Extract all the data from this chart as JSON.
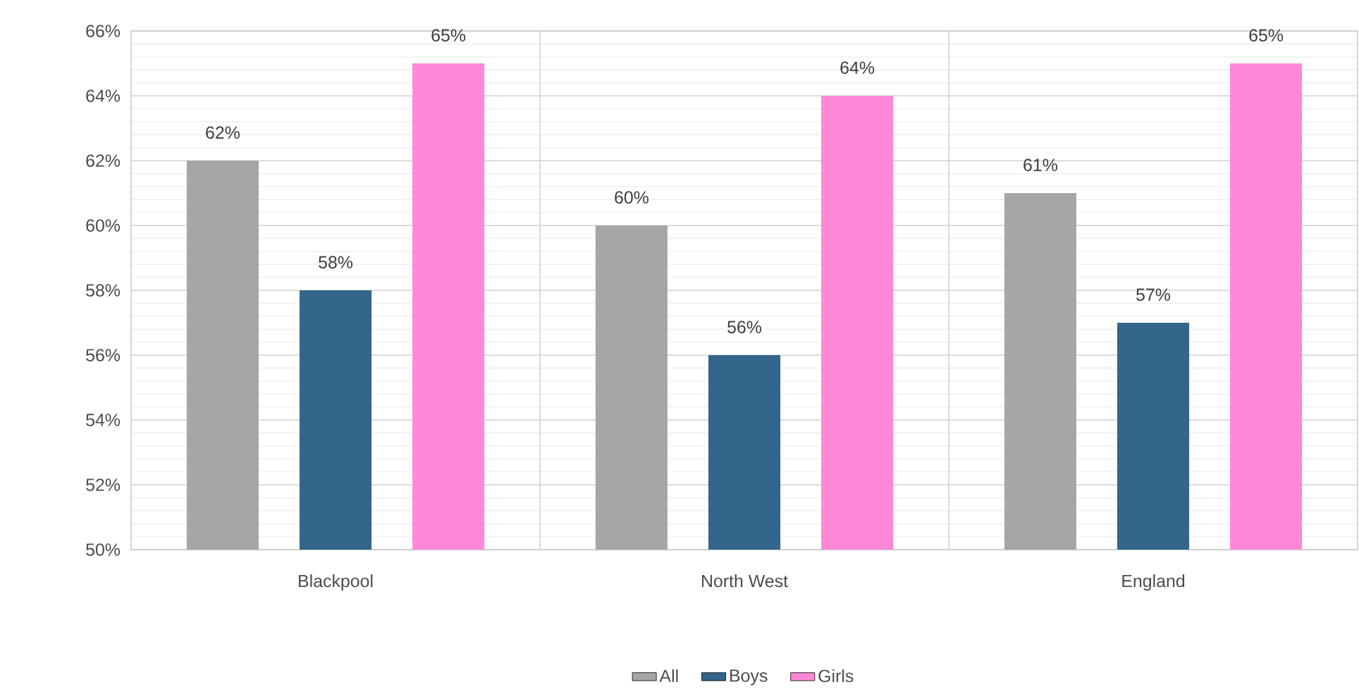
{
  "chart_data": {
    "type": "bar",
    "categories": [
      "Blackpool",
      "North West",
      "England"
    ],
    "series": [
      {
        "name": "All",
        "color": "#a6a6a6",
        "values": [
          62,
          60,
          61
        ],
        "value_labels": [
          "62%",
          "60%",
          "61%"
        ]
      },
      {
        "name": "Boys",
        "color": "#33668a",
        "values": [
          58,
          56,
          57
        ],
        "value_labels": [
          "58%",
          "56%",
          "57%"
        ]
      },
      {
        "name": "Girls",
        "color": "#ff88d8",
        "values": [
          65,
          64,
          65
        ],
        "value_labels": [
          "65%",
          "64%",
          "65%"
        ]
      }
    ],
    "ylim": [
      50,
      66
    ],
    "yticks": [
      {
        "value": 50,
        "label": "50%"
      },
      {
        "value": 52,
        "label": "52%"
      },
      {
        "value": 54,
        "label": "54%"
      },
      {
        "value": 56,
        "label": "56%"
      },
      {
        "value": 58,
        "label": "58%"
      },
      {
        "value": 60,
        "label": "60%"
      },
      {
        "value": 62,
        "label": "62%"
      },
      {
        "value": 64,
        "label": "64%"
      },
      {
        "value": 66,
        "label": "66%"
      }
    ],
    "grid": true,
    "legend": "bottom"
  }
}
